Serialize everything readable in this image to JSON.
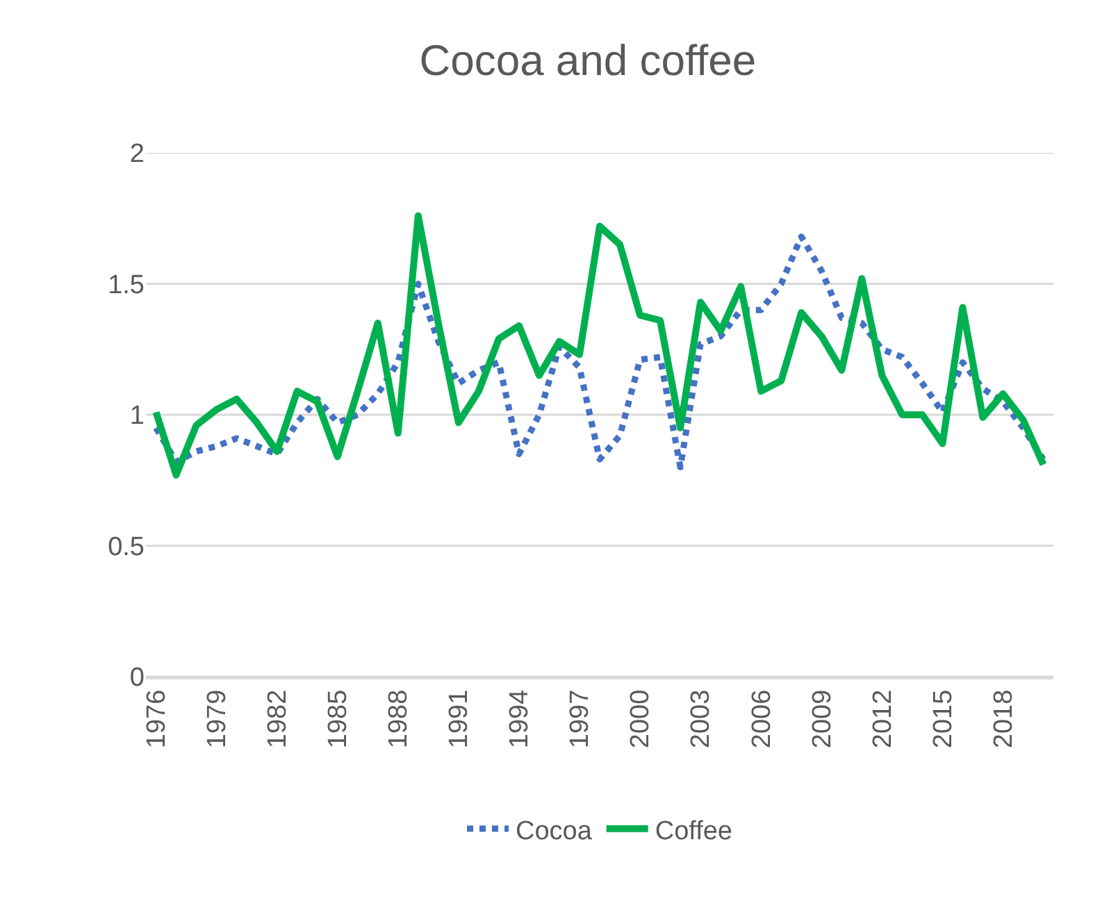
{
  "chart_data": {
    "type": "line",
    "title": "Cocoa and coffee",
    "categories": [
      "1976",
      null,
      null,
      "1979",
      null,
      null,
      "1982",
      null,
      null,
      "1985",
      null,
      null,
      "1988",
      null,
      null,
      "1991",
      null,
      null,
      "1994",
      null,
      null,
      "1997",
      null,
      null,
      "2000",
      null,
      null,
      "2003",
      null,
      null,
      "2006",
      null,
      null,
      "2009",
      null,
      null,
      "2012",
      null,
      null,
      "2015",
      null,
      null,
      "2018",
      null,
      null
    ],
    "series": [
      {
        "name": "Cocoa",
        "color": "#4472c4",
        "line_style": "dotted",
        "values": [
          0.95,
          0.82,
          0.86,
          0.88,
          0.91,
          0.88,
          0.85,
          0.97,
          1.06,
          0.97,
          1.0,
          1.08,
          1.2,
          1.5,
          1.28,
          1.12,
          1.17,
          1.2,
          0.85,
          1.0,
          1.26,
          1.18,
          0.83,
          0.92,
          1.21,
          1.22,
          0.8,
          1.27,
          1.3,
          1.4,
          1.4,
          1.5,
          1.68,
          1.55,
          1.37,
          1.35,
          1.25,
          1.22,
          1.12,
          1.01,
          1.2,
          1.1,
          1.05,
          0.95,
          0.83
        ]
      },
      {
        "name": "Coffee",
        "color": "#00b050",
        "line_style": "solid",
        "values": [
          1.01,
          0.77,
          0.96,
          1.02,
          1.06,
          0.97,
          0.86,
          1.09,
          1.05,
          0.84,
          1.09,
          1.35,
          0.93,
          1.76,
          1.35,
          0.97,
          1.09,
          1.29,
          1.34,
          1.15,
          1.28,
          1.23,
          1.72,
          1.65,
          1.38,
          1.36,
          0.95,
          1.43,
          1.32,
          1.49,
          1.09,
          1.13,
          1.39,
          1.3,
          1.17,
          1.52,
          1.15,
          1.0,
          1.0,
          0.89,
          1.41,
          0.99,
          1.08,
          0.98,
          0.81
        ]
      }
    ],
    "ylim": [
      0,
      2
    ],
    "yticks": [
      0,
      0.5,
      1,
      1.5,
      2
    ],
    "grid": "y",
    "legend": "bottom",
    "marker": "none"
  }
}
